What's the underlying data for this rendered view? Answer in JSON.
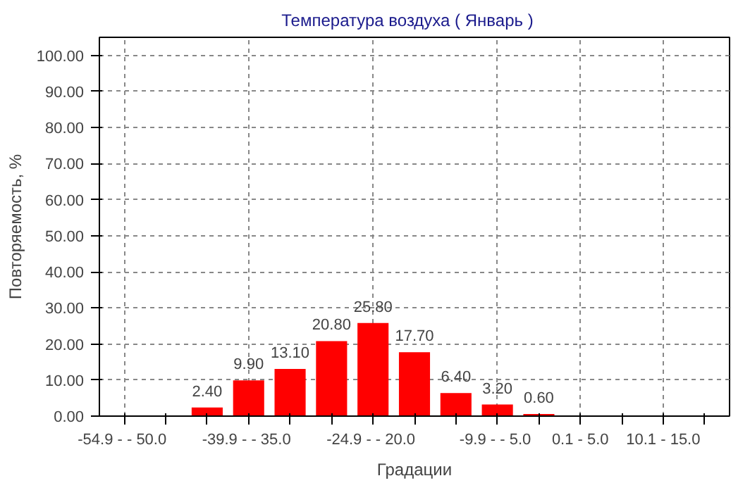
{
  "chart_data": {
    "type": "bar",
    "title": "Температура воздуха    ( Январь )",
    "xlabel": "Градации",
    "ylabel": "Повторяемость, %",
    "categories": [
      "-54.9 -  - 50.0",
      null,
      null,
      "-39.9 -  - 35.0",
      null,
      null,
      "-24.9 -  - 20.0",
      null,
      null,
      "-9.9 -  - 5.0",
      null,
      "0.1 - 5.0",
      null,
      "10.1 - 15.0",
      null
    ],
    "values": [
      0,
      0,
      2.4,
      9.9,
      13.1,
      20.8,
      25.8,
      17.7,
      6.4,
      3.2,
      0.6,
      0,
      0,
      0,
      0
    ],
    "value_labels": [
      null,
      null,
      "2.40",
      "9.90",
      "13.10",
      "20.80",
      "25.80",
      "17.70",
      "6.40",
      "3.20",
      "0.60",
      null,
      null,
      null,
      null
    ],
    "color": "#ff0000",
    "ylim": [
      0,
      105
    ],
    "yticks": [
      {
        "value": 0,
        "label": "0.00"
      },
      {
        "value": 10,
        "label": "10.00"
      },
      {
        "value": 20,
        "label": "20.00"
      },
      {
        "value": 30,
        "label": "30.00"
      },
      {
        "value": 40,
        "label": "40.00"
      },
      {
        "value": 50,
        "label": "50.00"
      },
      {
        "value": 60,
        "label": "60.00"
      },
      {
        "value": 70,
        "label": "70.00"
      },
      {
        "value": 80,
        "label": "80.00"
      },
      {
        "value": 90,
        "label": "90.00"
      },
      {
        "value": 100,
        "label": "100.00"
      }
    ],
    "grid": true
  }
}
